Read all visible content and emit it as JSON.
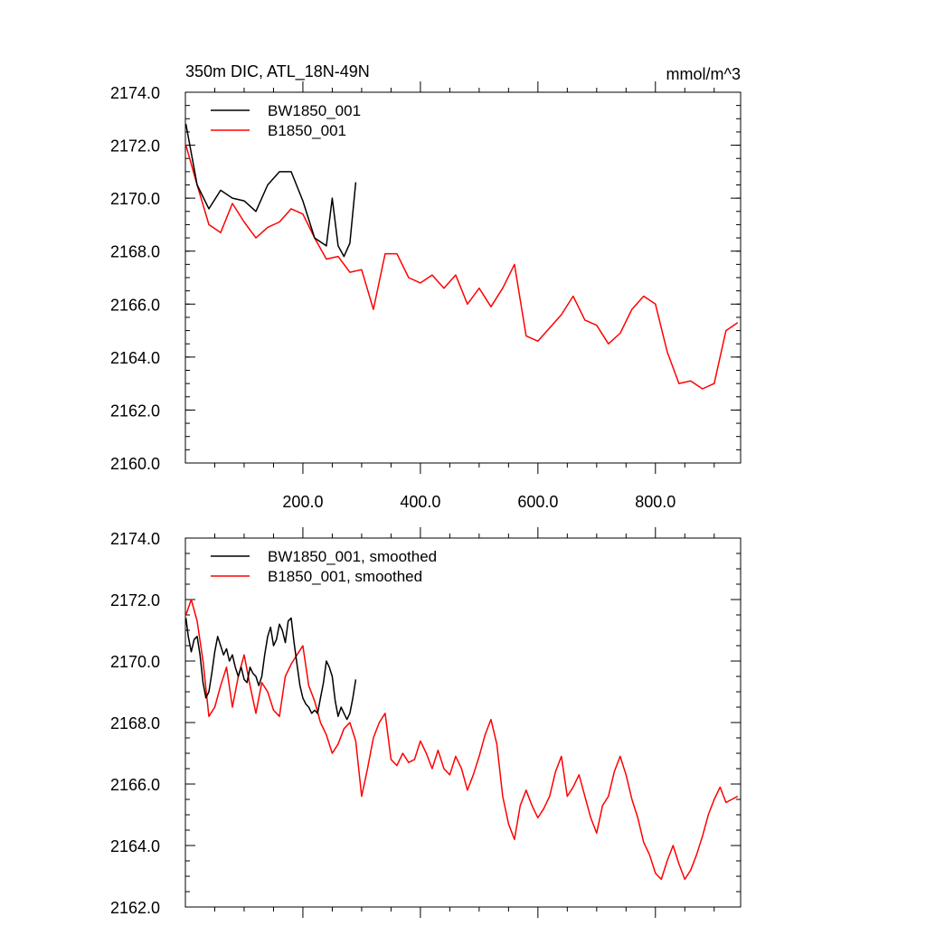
{
  "chart_data": [
    {
      "type": "line",
      "title": "350m DIC, ATL_18N-49N",
      "units": "mmol/m^3",
      "xlabel": "",
      "ylabel": "",
      "xlim": [
        0,
        945
      ],
      "ylim": [
        2160,
        2174
      ],
      "xticks": [
        200,
        400,
        600,
        800
      ],
      "xtick_labels": [
        "200.0",
        "400.0",
        "600.0",
        "800.0"
      ],
      "yticks": [
        2160,
        2162,
        2164,
        2166,
        2168,
        2170,
        2172,
        2174
      ],
      "ytick_labels": [
        "2160.0",
        "2162.0",
        "2164.0",
        "2166.0",
        "2168.0",
        "2170.0",
        "2172.0",
        "2174.0"
      ],
      "legend": "top-left",
      "series": [
        {
          "name": "BW1850_001",
          "color": "#000000",
          "x": [
            1,
            20,
            40,
            60,
            80,
            100,
            120,
            140,
            160,
            180,
            200,
            220,
            240,
            250,
            260,
            270,
            280,
            290
          ],
          "values": [
            2172.8,
            2170.5,
            2169.6,
            2170.3,
            2170.0,
            2169.9,
            2169.5,
            2170.5,
            2171.0,
            2171.0,
            2169.9,
            2168.5,
            2168.2,
            2170.0,
            2168.2,
            2167.8,
            2168.3,
            2170.6
          ]
        },
        {
          "name": "B1850_001",
          "color": "#ff0000",
          "x": [
            1,
            20,
            40,
            60,
            80,
            100,
            120,
            140,
            160,
            180,
            200,
            220,
            240,
            260,
            280,
            300,
            320,
            340,
            360,
            380,
            400,
            420,
            440,
            460,
            480,
            500,
            520,
            540,
            560,
            580,
            600,
            620,
            640,
            660,
            680,
            700,
            720,
            740,
            760,
            780,
            800,
            820,
            840,
            860,
            880,
            900,
            920,
            940
          ],
          "values": [
            2172.0,
            2170.5,
            2169.0,
            2168.7,
            2169.8,
            2169.1,
            2168.5,
            2168.9,
            2169.1,
            2169.6,
            2169.4,
            2168.5,
            2167.7,
            2167.8,
            2167.2,
            2167.3,
            2165.8,
            2167.9,
            2167.9,
            2167.0,
            2166.8,
            2167.1,
            2166.6,
            2167.1,
            2166.0,
            2166.6,
            2165.9,
            2166.6,
            2167.5,
            2164.8,
            2164.6,
            2165.1,
            2165.6,
            2166.3,
            2165.4,
            2165.2,
            2164.5,
            2164.9,
            2165.8,
            2166.3,
            2166.0,
            2164.2,
            2163.0,
            2163.1,
            2162.8,
            2163.0,
            2165.0,
            2165.3
          ]
        }
      ]
    },
    {
      "type": "line",
      "title": "",
      "xlabel": "",
      "ylabel": "",
      "xlim": [
        0,
        945
      ],
      "ylim": [
        2162,
        2174
      ],
      "yticks": [
        2162,
        2164,
        2166,
        2168,
        2170,
        2172,
        2174
      ],
      "ytick_labels": [
        "2162.0",
        "2164.0",
        "2166.0",
        "2168.0",
        "2170.0",
        "2172.0",
        "2174.0"
      ],
      "legend": "top-left",
      "series": [
        {
          "name": "BW1850_001, smoothed",
          "color": "#000000",
          "x": [
            1,
            5,
            10,
            15,
            20,
            25,
            30,
            35,
            40,
            45,
            50,
            55,
            60,
            65,
            70,
            75,
            80,
            85,
            90,
            95,
            100,
            105,
            110,
            115,
            120,
            125,
            130,
            135,
            140,
            145,
            150,
            155,
            160,
            165,
            170,
            175,
            180,
            185,
            190,
            195,
            200,
            205,
            210,
            215,
            220,
            225,
            230,
            235,
            240,
            245,
            250,
            255,
            260,
            265,
            270,
            275,
            280,
            285,
            290
          ],
          "values": [
            2171.4,
            2170.8,
            2170.3,
            2170.7,
            2170.8,
            2170.2,
            2169.3,
            2168.8,
            2169.0,
            2169.6,
            2170.3,
            2170.8,
            2170.5,
            2170.2,
            2170.4,
            2170.0,
            2170.2,
            2169.8,
            2169.5,
            2169.8,
            2169.4,
            2169.3,
            2169.8,
            2169.6,
            2169.5,
            2169.2,
            2169.5,
            2170.2,
            2170.8,
            2171.1,
            2170.5,
            2170.7,
            2171.2,
            2171.0,
            2170.6,
            2171.3,
            2171.4,
            2170.6,
            2169.9,
            2169.2,
            2168.8,
            2168.6,
            2168.5,
            2168.3,
            2168.4,
            2168.3,
            2168.8,
            2169.3,
            2170.0,
            2169.8,
            2169.5,
            2168.7,
            2168.2,
            2168.5,
            2168.3,
            2168.1,
            2168.3,
            2168.8,
            2169.4
          ]
        },
        {
          "name": "B1850_001, smoothed",
          "color": "#ff0000",
          "x": [
            1,
            10,
            20,
            30,
            40,
            50,
            60,
            70,
            80,
            90,
            100,
            110,
            120,
            130,
            140,
            150,
            160,
            170,
            180,
            190,
            200,
            210,
            220,
            230,
            240,
            250,
            260,
            270,
            280,
            290,
            300,
            310,
            320,
            330,
            340,
            350,
            360,
            370,
            380,
            390,
            400,
            410,
            420,
            430,
            440,
            450,
            460,
            470,
            480,
            490,
            500,
            510,
            520,
            530,
            540,
            550,
            560,
            570,
            580,
            590,
            600,
            610,
            620,
            630,
            640,
            650,
            660,
            670,
            680,
            690,
            700,
            710,
            720,
            730,
            740,
            750,
            760,
            770,
            780,
            790,
            800,
            810,
            820,
            830,
            840,
            850,
            860,
            870,
            880,
            890,
            900,
            910,
            920,
            930,
            940
          ],
          "values": [
            2171.5,
            2172.0,
            2171.3,
            2170.0,
            2168.2,
            2168.5,
            2169.2,
            2169.8,
            2168.5,
            2169.5,
            2170.2,
            2169.2,
            2168.3,
            2169.3,
            2169.0,
            2168.4,
            2168.2,
            2169.5,
            2169.9,
            2170.2,
            2170.5,
            2169.2,
            2168.7,
            2168.0,
            2167.6,
            2167.0,
            2167.3,
            2167.8,
            2168.0,
            2167.4,
            2165.6,
            2166.5,
            2167.5,
            2168.0,
            2168.3,
            2166.8,
            2166.6,
            2167.0,
            2166.7,
            2166.8,
            2167.4,
            2167.0,
            2166.5,
            2167.1,
            2166.5,
            2166.3,
            2166.9,
            2166.5,
            2165.8,
            2166.3,
            2166.9,
            2167.6,
            2168.1,
            2167.3,
            2165.6,
            2164.7,
            2164.2,
            2165.3,
            2165.8,
            2165.3,
            2164.9,
            2165.2,
            2165.6,
            2166.4,
            2166.9,
            2165.6,
            2165.9,
            2166.3,
            2165.6,
            2164.9,
            2164.4,
            2165.3,
            2165.6,
            2166.4,
            2166.9,
            2166.3,
            2165.5,
            2164.9,
            2164.1,
            2163.7,
            2163.1,
            2162.9,
            2163.5,
            2164.0,
            2163.4,
            2162.9,
            2163.2,
            2163.7,
            2164.3,
            2165.0,
            2165.5,
            2165.9,
            2165.4,
            2165.5,
            2165.6
          ]
        }
      ]
    }
  ]
}
